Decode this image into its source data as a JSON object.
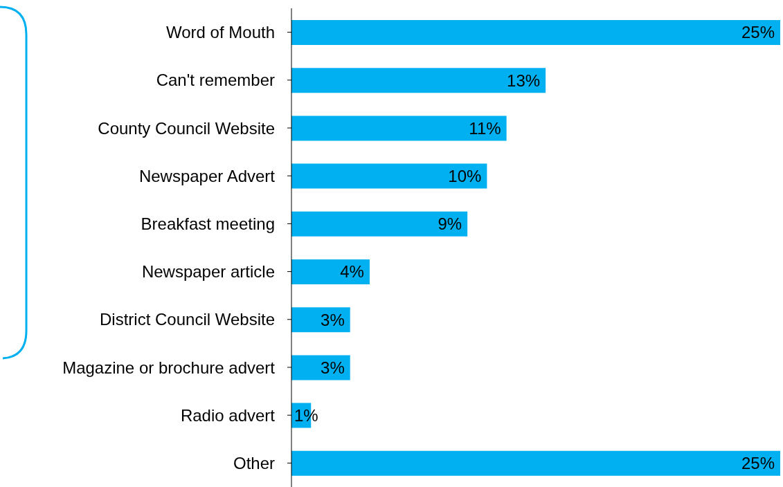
{
  "chart_data": {
    "type": "bar",
    "orientation": "horizontal",
    "categories": [
      "Word of Mouth",
      "Can't remember",
      "County Council Website",
      "Newspaper Advert",
      "Breakfast meeting",
      "Newspaper article",
      "District Council Website ",
      "Magazine or brochure advert",
      "Radio advert",
      "Other"
    ],
    "values": [
      25,
      13,
      11,
      10,
      9,
      4,
      3,
      3,
      1,
      25
    ],
    "value_labels": [
      "25%",
      "13%",
      "11%",
      "10%",
      "9%",
      "4%",
      "3%",
      "3%",
      "1%",
      "25%"
    ],
    "color": "#00b0f0",
    "grid": false,
    "legend": false
  }
}
